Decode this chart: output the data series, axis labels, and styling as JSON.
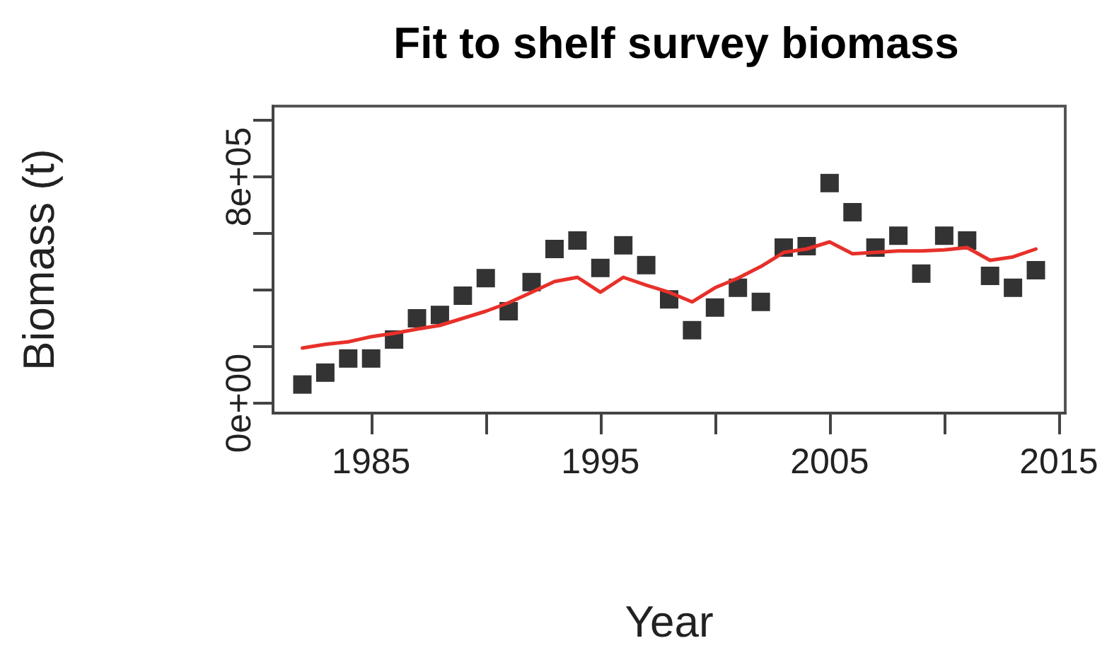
{
  "chart_data": {
    "type": "scatter",
    "title": "Fit to shelf survey biomass",
    "xlabel": "Year",
    "ylabel": "Biomass (t)",
    "x": [
      1982,
      1983,
      1984,
      1985,
      1986,
      1987,
      1988,
      1989,
      1990,
      1991,
      1992,
      1993,
      1994,
      1995,
      1996,
      1997,
      1998,
      1999,
      2000,
      2001,
      2002,
      2003,
      2004,
      2005,
      2006,
      2007,
      2008,
      2009,
      2010,
      2011,
      2012,
      2013,
      2014
    ],
    "series": [
      {
        "color": "#000000",
        "marker": "square",
        "values": [
          66000,
          108000,
          158000,
          158000,
          225000,
          300000,
          312000,
          380000,
          442000,
          325000,
          428000,
          545000,
          575000,
          478000,
          558000,
          488000,
          367000,
          258000,
          338000,
          408000,
          358000,
          550000,
          555000,
          778000,
          675000,
          550000,
          592000,
          458000,
          592000,
          575000,
          450000,
          408000,
          470000
        ]
      },
      {
        "type": "line",
        "color": "#e8302a",
        "marker": "none",
        "line_style": "solid",
        "values": [
          195000,
          208000,
          217000,
          235000,
          247000,
          262000,
          275000,
          300000,
          325000,
          355000,
          392000,
          430000,
          445000,
          392000,
          445000,
          417000,
          392000,
          358000,
          408000,
          442000,
          483000,
          533000,
          545000,
          570000,
          528000,
          533000,
          538000,
          538000,
          542000,
          550000,
          505000,
          517000,
          545000
        ]
      }
    ],
    "xlim": [
      1980.72,
      2015.28
    ],
    "xticks": [
      1985,
      {
        "value": 1990,
        "label": null
      },
      1995,
      {
        "value": 2000,
        "label": null
      },
      2005,
      {
        "value": 2010,
        "label": null
      },
      2015
    ],
    "ylim": [
      -35000,
      1050000
    ],
    "yticks": [
      {
        "value": 0,
        "label": "0e+00"
      },
      {
        "value": 200000,
        "label": null
      },
      {
        "value": 400000,
        "label": null
      },
      {
        "value": 600000,
        "label": null
      },
      {
        "value": 800000,
        "label": "8e+05"
      },
      {
        "value": 1000000,
        "label": null
      }
    ],
    "grid": false
  }
}
